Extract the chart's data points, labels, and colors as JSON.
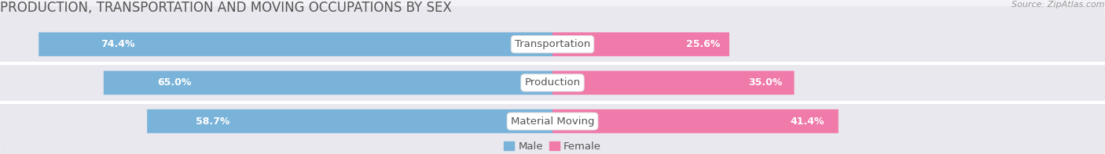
{
  "title": "PRODUCTION, TRANSPORTATION AND MOVING OCCUPATIONS BY SEX",
  "source": "Source: ZipAtlas.com",
  "categories": [
    "Transportation",
    "Production",
    "Material Moving"
  ],
  "male_values": [
    74.4,
    65.0,
    58.7
  ],
  "female_values": [
    25.6,
    35.0,
    41.4
  ],
  "male_color": "#7ab3d9",
  "female_color": "#f07aaa",
  "male_label": "Male",
  "female_label": "Female",
  "xlim_min": -80,
  "xlim_max": 80,
  "bar_height": 0.62,
  "bg_color": "#f2f2f7",
  "row_bg_color": "#e8e8ee",
  "separator_color": "#ffffff",
  "title_color": "#555555",
  "source_color": "#999999",
  "label_color_dark": "#555555",
  "title_fontsize": 12,
  "label_fontsize": 9.5,
  "pct_fontsize": 9,
  "tick_fontsize": 9,
  "source_fontsize": 8
}
